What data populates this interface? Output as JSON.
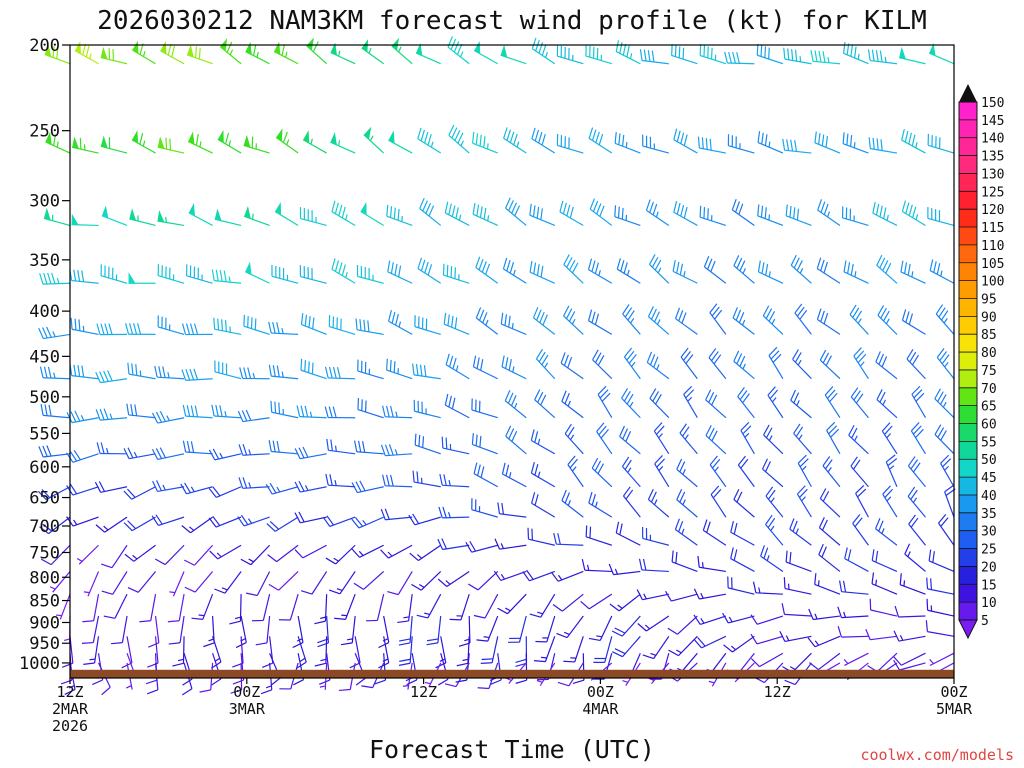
{
  "chart_data": {
    "type": "wind-barb-profile",
    "title": "2026030212 NAM3KM forecast wind profile (kt) for KILM",
    "xlabel": "Forecast Time (UTC)",
    "credit": "coolwx.com/models",
    "x_range_hours": [
      0,
      60
    ],
    "x_ticks": [
      {
        "hour": 0,
        "line1": "12Z",
        "line2": "2MAR",
        "line3": "2026"
      },
      {
        "hour": 12,
        "line1": "00Z",
        "line2": "3MAR",
        "line3": ""
      },
      {
        "hour": 24,
        "line1": "12Z",
        "line2": "",
        "line3": ""
      },
      {
        "hour": 36,
        "line1": "00Z",
        "line2": "4MAR",
        "line3": ""
      },
      {
        "hour": 48,
        "line1": "12Z",
        "line2": "",
        "line3": ""
      },
      {
        "hour": 60,
        "line1": "00Z",
        "line2": "5MAR",
        "line3": ""
      }
    ],
    "y_axis": "pressure (hPa), log scale, inverted",
    "y_range": [
      200,
      1040
    ],
    "y_ticks": [
      "200",
      "250",
      "300",
      "350",
      "400",
      "450",
      "500",
      "550",
      "600",
      "650",
      "700",
      "750",
      "800",
      "850",
      "900",
      "950",
      "1000"
    ],
    "levels_hpa": [
      210,
      265,
      320,
      372,
      425,
      477,
      528,
      580,
      632,
      684,
      736,
      788,
      836,
      885,
      933,
      975,
      1000
    ],
    "level_speed_kt": [
      [
        70,
        68,
        52,
        44,
        42,
        48
      ],
      [
        62,
        66,
        48,
        38,
        36,
        42
      ],
      [
        50,
        52,
        44,
        38,
        34,
        44
      ],
      [
        44,
        46,
        42,
        36,
        34,
        38
      ],
      [
        38,
        40,
        38,
        34,
        32,
        34
      ],
      [
        38,
        38,
        36,
        32,
        30,
        32
      ],
      [
        34,
        36,
        32,
        30,
        28,
        30
      ],
      [
        28,
        28,
        30,
        28,
        26,
        28
      ],
      [
        20,
        24,
        26,
        26,
        24,
        26
      ],
      [
        16,
        20,
        22,
        24,
        22,
        24
      ],
      [
        10,
        12,
        16,
        20,
        22,
        22
      ],
      [
        8,
        10,
        12,
        16,
        20,
        20
      ],
      [
        8,
        12,
        14,
        14,
        16,
        18
      ],
      [
        8,
        14,
        18,
        16,
        14,
        12
      ],
      [
        10,
        14,
        16,
        18,
        14,
        10
      ],
      [
        8,
        12,
        16,
        14,
        12,
        8
      ],
      [
        10,
        10,
        8,
        6,
        8,
        8
      ]
    ],
    "level_dir_deg": [
      [
        290,
        300,
        305,
        290,
        280,
        285
      ],
      [
        285,
        295,
        305,
        295,
        285,
        290
      ],
      [
        280,
        290,
        300,
        300,
        295,
        295
      ],
      [
        275,
        285,
        295,
        305,
        305,
        300
      ],
      [
        270,
        280,
        290,
        310,
        315,
        310
      ],
      [
        270,
        275,
        285,
        315,
        320,
        315
      ],
      [
        265,
        270,
        280,
        320,
        320,
        320
      ],
      [
        260,
        265,
        275,
        320,
        320,
        325
      ],
      [
        250,
        255,
        270,
        320,
        320,
        330
      ],
      [
        240,
        245,
        255,
        310,
        320,
        330
      ],
      [
        220,
        230,
        240,
        285,
        310,
        320
      ],
      [
        210,
        215,
        220,
        260,
        300,
        300
      ],
      [
        200,
        190,
        195,
        230,
        280,
        290
      ],
      [
        190,
        175,
        180,
        210,
        260,
        280
      ],
      [
        180,
        170,
        175,
        200,
        250,
        270
      ],
      [
        170,
        165,
        170,
        190,
        230,
        240
      ],
      [
        160,
        180,
        200,
        220,
        220,
        250
      ]
    ],
    "colorbar": {
      "ticks": [
        "150",
        "145",
        "140",
        "135",
        "130",
        "125",
        "120",
        "115",
        "110",
        "105",
        "100",
        "95",
        "90",
        "85",
        "80",
        "75",
        "70",
        "65",
        "60",
        "55",
        "50",
        "45",
        "40",
        "35",
        "30",
        "25",
        "20",
        "15",
        "10",
        "5"
      ],
      "stops": [
        {
          "kt": 5,
          "color": "#7a1df5"
        },
        {
          "kt": 15,
          "color": "#2a10d8"
        },
        {
          "kt": 25,
          "color": "#1f4ff0"
        },
        {
          "kt": 40,
          "color": "#18a8f0"
        },
        {
          "kt": 48,
          "color": "#13d8c5"
        },
        {
          "kt": 55,
          "color": "#0fd883"
        },
        {
          "kt": 65,
          "color": "#38e019"
        },
        {
          "kt": 72,
          "color": "#aaee10"
        },
        {
          "kt": 80,
          "color": "#f6ee09"
        },
        {
          "kt": 90,
          "color": "#ffc000"
        },
        {
          "kt": 100,
          "color": "#ff9000"
        },
        {
          "kt": 110,
          "color": "#ff5a10"
        },
        {
          "kt": 120,
          "color": "#ff1d1d"
        },
        {
          "kt": 132,
          "color": "#ff2a7a"
        },
        {
          "kt": 150,
          "color": "#ff1fd8"
        }
      ]
    },
    "ground_color": "#8b4a25"
  }
}
